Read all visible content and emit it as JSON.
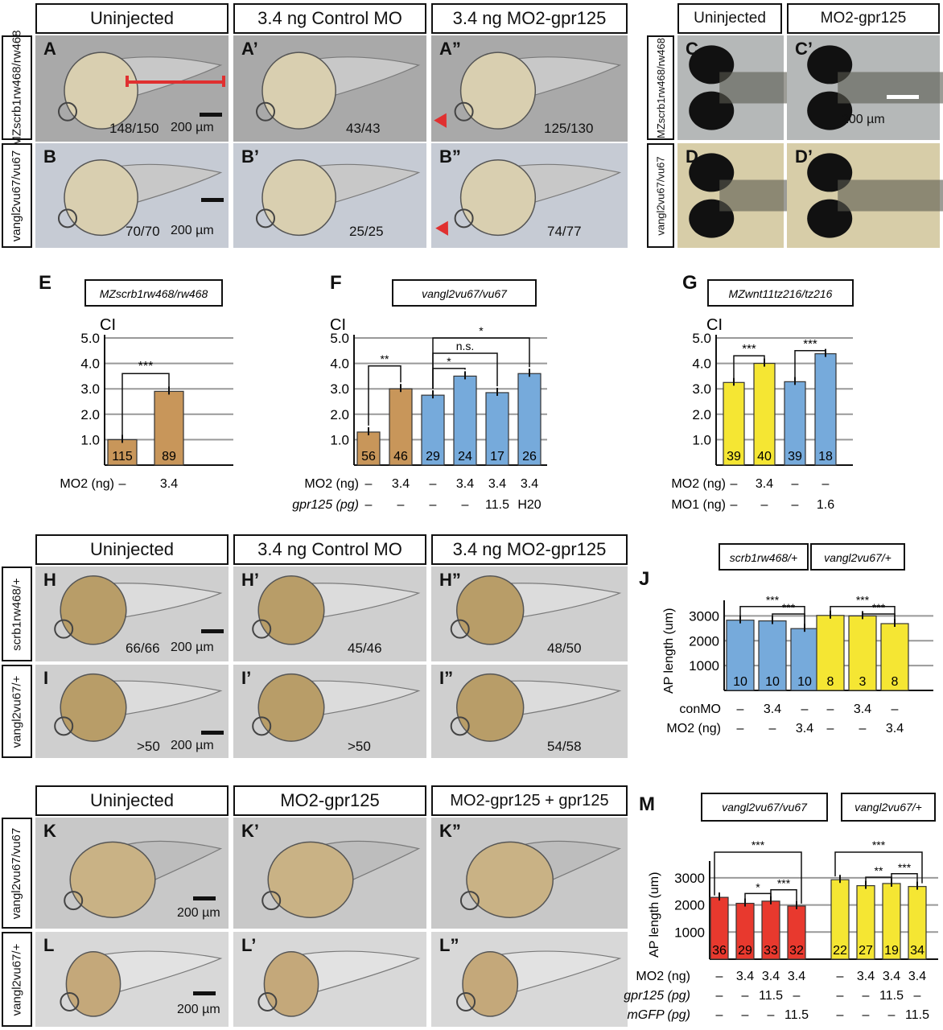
{
  "headers_top": [
    "Uninjected",
    "3.4 ng Control MO",
    "3.4 ng MO2-gpr125"
  ],
  "headers_top_right": [
    "Uninjected",
    "MO2-gpr125"
  ],
  "row_labels_top": [
    "MZscrb1rw468/rw468",
    "vangl2vu67/vu67"
  ],
  "row_labels_right": [
    "MZscrb1rw468/rw468",
    "vangl2vu67/vu67"
  ],
  "panels_A": [
    "A",
    "A’",
    "A”"
  ],
  "panels_B": [
    "B",
    "B’",
    "B”"
  ],
  "counts_A": [
    "148/150",
    "43/43",
    "125/130"
  ],
  "counts_B": [
    "70/70",
    "25/25",
    "74/77"
  ],
  "panels_C": [
    "C",
    "C’"
  ],
  "panels_D": [
    "D",
    "D’"
  ],
  "scale": "200 µm",
  "headers_mid": [
    "Uninjected",
    "3.4 ng Control MO",
    "3.4 ng MO2-gpr125"
  ],
  "row_labels_mid": [
    "scrb1rw468/+",
    "vangl2vu67/+"
  ],
  "panels_H": [
    "H",
    "H’",
    "H”"
  ],
  "panels_I": [
    "I",
    "I’",
    "I”"
  ],
  "counts_H": [
    "66/66",
    "45/46",
    "48/50"
  ],
  "counts_I": [
    ">50",
    ">50",
    "54/58"
  ],
  "headers_bot": [
    "Uninjected",
    "MO2-gpr125",
    "MO2-gpr125 + gpr125"
  ],
  "row_labels_bot": [
    "vangl2vu67/vu67",
    "vangl2vu67/+"
  ],
  "panels_K": [
    "K",
    "K’",
    "K”"
  ],
  "panels_L": [
    "L",
    "L’",
    "L”"
  ],
  "graph_letters": [
    "E",
    "F",
    "G",
    "J",
    "M"
  ],
  "colors": {
    "brown": "#c8965a",
    "blue": "#76aadb",
    "yellow": "#f5e633",
    "red": "#e8392e",
    "arrow": "#e03030"
  },
  "chart_data": [
    {
      "id": "E",
      "type": "bar",
      "title": "MZscrb1rw468/rw468",
      "ylabel": "CI",
      "ylim": [
        0,
        5
      ],
      "yticks": [
        "1.0",
        "2.0",
        "3.0",
        "4.0",
        "5.0"
      ],
      "values": [
        1.0,
        2.9
      ],
      "n": [
        "115",
        "89"
      ],
      "colors": [
        "brown",
        "brown"
      ],
      "rows": [
        {
          "label": "MO2 (ng)",
          "cells": [
            "–",
            "3.4"
          ]
        }
      ],
      "significance": [
        "***"
      ]
    },
    {
      "id": "F",
      "type": "bar",
      "title": "vangl2vu67/vu67",
      "ylabel": "CI",
      "ylim": [
        0,
        5
      ],
      "yticks": [
        "1.0",
        "2.0",
        "3.0",
        "4.0",
        "5.0"
      ],
      "values": [
        1.3,
        3.0,
        2.75,
        3.5,
        2.85,
        3.6
      ],
      "n": [
        "56",
        "46",
        "29",
        "24",
        "17",
        "26"
      ],
      "colors": [
        "brown",
        "brown",
        "blue",
        "blue",
        "blue",
        "blue"
      ],
      "rows": [
        {
          "label": "MO2 (ng)",
          "cells": [
            "–",
            "3.4",
            "–",
            "3.4",
            "3.4",
            "3.4"
          ]
        },
        {
          "label": "gpr125 (pg)",
          "cells": [
            "–",
            "–",
            "–",
            "–",
            "11.5",
            "H20"
          ]
        }
      ],
      "significance": [
        "**",
        "*",
        "n.s.",
        "*"
      ]
    },
    {
      "id": "G",
      "type": "bar",
      "title": "MZwnt11tz216/tz216",
      "ylabel": "CI",
      "ylim": [
        0,
        5
      ],
      "yticks": [
        "1.0",
        "2.0",
        "3.0",
        "4.0",
        "5.0"
      ],
      "values": [
        3.25,
        4.0,
        3.28,
        4.38
      ],
      "n": [
        "39",
        "40",
        "39",
        "18"
      ],
      "colors": [
        "yellow",
        "yellow",
        "blue",
        "blue"
      ],
      "rows": [
        {
          "label": "MO2 (ng)",
          "cells": [
            "–",
            "3.4",
            "–",
            "–"
          ]
        },
        {
          "label": "MO1 (ng)",
          "cells": [
            "–",
            "–",
            "–",
            "1.6"
          ]
        }
      ],
      "significance": [
        "***",
        "***"
      ]
    },
    {
      "id": "J",
      "type": "bar",
      "titles": [
        "scrb1rw468/+",
        "vangl2vu67/+"
      ],
      "ylabel": "AP length (um)",
      "ylim": [
        0,
        3500
      ],
      "yticks": [
        "1000",
        "2000",
        "3000"
      ],
      "values": [
        2830,
        2800,
        2490,
        3020,
        3000,
        2690
      ],
      "n": [
        "10",
        "10",
        "10",
        "8",
        "3",
        "8"
      ],
      "colors": [
        "blue",
        "blue",
        "blue",
        "yellow",
        "yellow",
        "yellow"
      ],
      "rows": [
        {
          "label": "conMO",
          "cells": [
            "–",
            "3.4",
            "–",
            "–",
            "3.4",
            "–"
          ]
        },
        {
          "label": "MO2 (ng)",
          "cells": [
            "–",
            "–",
            "3.4",
            "–",
            "–",
            "3.4"
          ]
        }
      ],
      "significance": [
        "***",
        "***",
        "***",
        "***"
      ]
    },
    {
      "id": "M",
      "type": "bar",
      "titles": [
        "vangl2vu67/vu67",
        "vangl2vu67/+"
      ],
      "ylabel": "AP length (um)",
      "ylim": [
        0,
        3500
      ],
      "yticks": [
        "1000",
        "2000",
        "3000"
      ],
      "values": [
        2280,
        2060,
        2140,
        1960,
        2930,
        2710,
        2790,
        2680
      ],
      "n": [
        "36",
        "29",
        "33",
        "32",
        "22",
        "27",
        "19",
        "34"
      ],
      "colors": [
        "red",
        "red",
        "red",
        "red",
        "yellow",
        "yellow",
        "yellow",
        "yellow"
      ],
      "rows": [
        {
          "label": "MO2 (ng)",
          "cells": [
            "–",
            "3.4",
            "3.4",
            "3.4",
            "–",
            "3.4",
            "3.4",
            "3.4"
          ]
        },
        {
          "label": "gpr125 (pg)",
          "cells": [
            "–",
            "–",
            "11.5",
            "–",
            "–",
            "–",
            "11.5",
            "–"
          ]
        },
        {
          "label": "mGFP (pg)",
          "cells": [
            "–",
            "–",
            "–",
            "11.5",
            "–",
            "–",
            "–",
            "11.5"
          ]
        }
      ],
      "significance": [
        "***",
        "*",
        "***",
        "***",
        "**",
        "***"
      ]
    }
  ]
}
